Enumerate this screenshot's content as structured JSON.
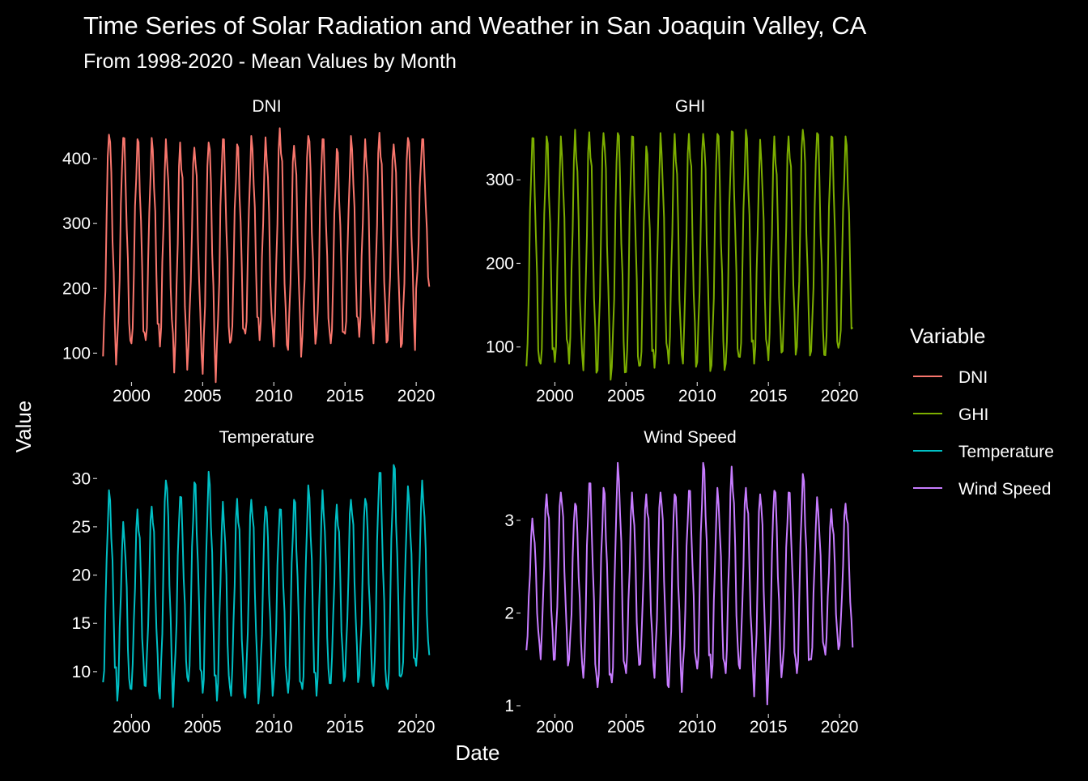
{
  "title": "Time Series of Solar Radiation and Weather in San Joaquin Valley, CA",
  "subtitle": "From 1998-2020 - Mean Values by Month",
  "x_axis_title": "Date",
  "y_axis_title": "Value",
  "legend": {
    "title": "Variable",
    "items": [
      {
        "label": "DNI",
        "color": "#F8766D"
      },
      {
        "label": "GHI",
        "color": "#7CAE00"
      },
      {
        "label": "Temperature",
        "color": "#00BFC4"
      },
      {
        "label": "Wind Speed",
        "color": "#C77CFF"
      }
    ]
  },
  "chart_data": [
    {
      "type": "line",
      "panel": "DNI",
      "color": "#F8766D",
      "xlim": [
        1997.7,
        2021.3
      ],
      "ylim": [
        58,
        455
      ],
      "xticks": [
        2000,
        2005,
        2010,
        2015,
        2020
      ],
      "yticks": [
        100,
        200,
        300,
        400
      ],
      "annual_peaks": [
        437,
        432,
        430,
        432,
        430,
        425,
        417,
        425,
        430,
        422,
        435,
        433,
        447,
        420,
        435,
        430,
        415,
        435,
        430,
        440,
        422,
        432,
        430
      ],
      "annual_troughs": [
        95,
        120,
        115,
        120,
        110,
        70,
        110,
        68,
        115,
        120,
        130,
        120,
        110,
        105,
        125,
        130,
        115,
        130,
        125,
        115,
        120,
        115,
        200
      ]
    },
    {
      "type": "line",
      "panel": "GHI",
      "color": "#7CAE00",
      "xlim": [
        1997.7,
        2021.3
      ],
      "ylim": [
        60,
        368
      ],
      "xticks": [
        2000,
        2005,
        2010,
        2015,
        2020
      ],
      "yticks": [
        100,
        200,
        300
      ],
      "annual_peaks": [
        350,
        352,
        352,
        360,
        357,
        356,
        356,
        352,
        340,
        356,
        355,
        355,
        355,
        355,
        358,
        360,
        348,
        352,
        352,
        360,
        356,
        352,
        352
      ],
      "annual_troughs": [
        77,
        80,
        82,
        80,
        72,
        72,
        76,
        70,
        78,
        75,
        80,
        80,
        82,
        78,
        80,
        88,
        80,
        84,
        95,
        100,
        95,
        90,
        105
      ]
    },
    {
      "type": "line",
      "panel": "Temperature",
      "color": "#00BFC4",
      "xlim": [
        1997.7,
        2021.3
      ],
      "ylim": [
        5.8,
        32.2
      ],
      "xticks": [
        2000,
        2005,
        2010,
        2015,
        2020
      ],
      "yticks": [
        10,
        15,
        20,
        25,
        30
      ],
      "annual_peaks": [
        28.8,
        25.5,
        26.8,
        27.1,
        29.8,
        28.1,
        29.6,
        30.7,
        27.6,
        27.9,
        27.8,
        27.1,
        26.8,
        27.8,
        29.3,
        28.8,
        27.3,
        27.8,
        27.9,
        30.6,
        31.4,
        29.2,
        29.8
      ],
      "annual_troughs": [
        8.9,
        7.0,
        8.2,
        8.5,
        7.2,
        9.5,
        9.0,
        7.8,
        7.0,
        7.5,
        7.3,
        8.2,
        9.1,
        7.8,
        8.2,
        7.5,
        8.8,
        9.5,
        9.6,
        8.5,
        8.2,
        9.8,
        10.6
      ]
    },
    {
      "type": "line",
      "panel": "Wind Speed",
      "color": "#C77CFF",
      "xlim": [
        1997.7,
        2021.3
      ],
      "ylim": [
        0.93,
        3.68
      ],
      "xticks": [
        2000,
        2005,
        2010,
        2015,
        2020
      ],
      "yticks": [
        1,
        2,
        3
      ],
      "annual_peaks": [
        3.02,
        3.28,
        3.3,
        3.18,
        3.4,
        3.35,
        3.62,
        3.3,
        3.28,
        3.3,
        3.28,
        3.32,
        3.62,
        3.35,
        3.58,
        3.35,
        3.28,
        3.32,
        3.3,
        3.5,
        3.25,
        3.12,
        3.18
      ],
      "annual_troughs": [
        1.6,
        1.5,
        1.5,
        1.5,
        1.3,
        1.2,
        1.25,
        1.35,
        1.45,
        1.3,
        1.2,
        1.45,
        1.4,
        1.3,
        1.35,
        1.4,
        1.1,
        1.35,
        1.45,
        1.35,
        1.5,
        1.55,
        1.65
      ]
    }
  ]
}
